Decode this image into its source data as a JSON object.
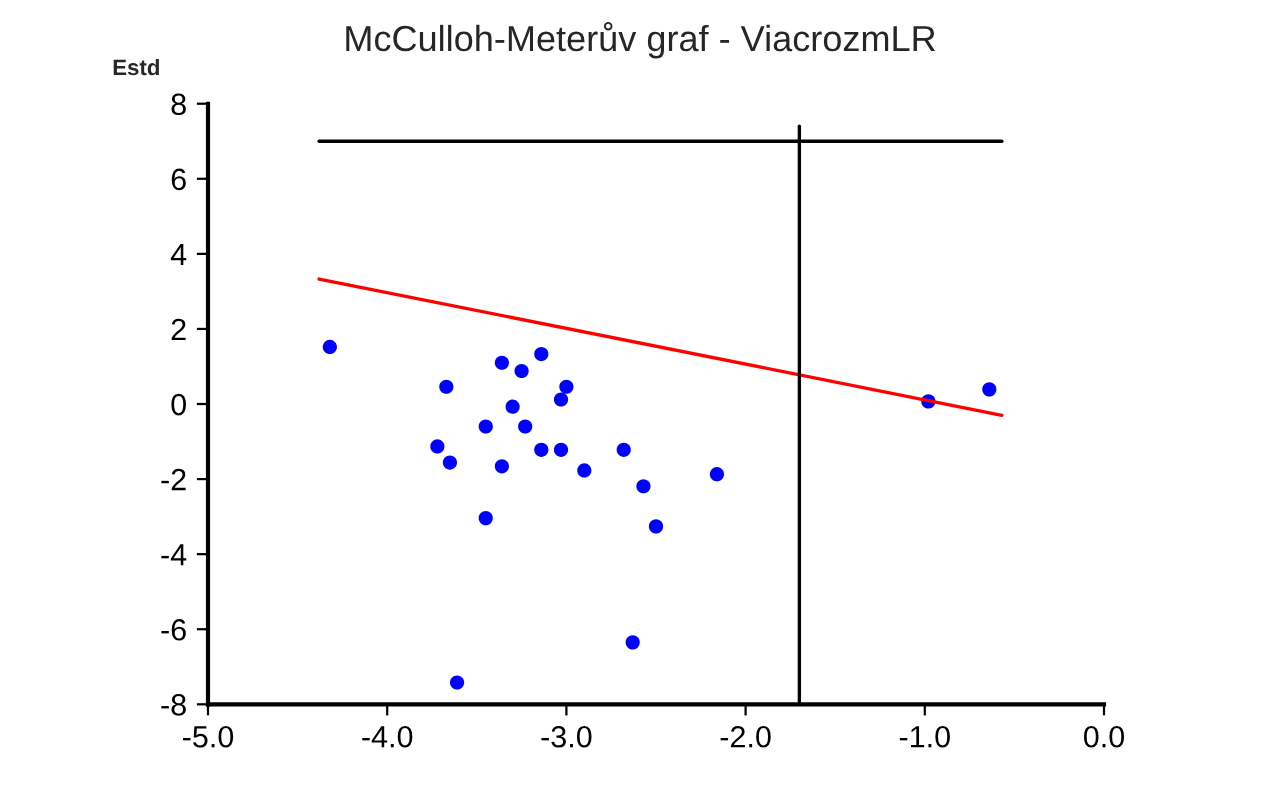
{
  "chart_data": {
    "type": "scatter",
    "title": "McCulloh-Meterův graf - ViacrozmLR",
    "ylabel": "Estd",
    "xlim": [
      -5,
      0
    ],
    "ylim": [
      -8,
      8
    ],
    "xticks": [
      {
        "value": -5,
        "label": "-5.0"
      },
      {
        "value": -4,
        "label": "-4.0"
      },
      {
        "value": -3,
        "label": "-3.0"
      },
      {
        "value": -2,
        "label": "-2.0"
      },
      {
        "value": -1,
        "label": "-1.0"
      },
      {
        "value": 0,
        "label": "0.0"
      }
    ],
    "yticks": [
      -8,
      -6,
      -4,
      -2,
      0,
      2,
      4,
      6,
      8
    ],
    "grid": false,
    "legend": false,
    "marker": "circle",
    "series": [
      {
        "color": "#0000ff",
        "x": [
          -4.32,
          -3.67,
          -3.36,
          -3.25,
          -3.14,
          -3.0,
          -3.03,
          -3.3,
          -3.45,
          -3.23,
          -3.72,
          -3.65,
          -3.36,
          -3.14,
          -3.03,
          -2.9,
          -2.68,
          -2.57,
          -2.5,
          -3.45,
          -2.63,
          -3.61,
          -2.16,
          -0.98,
          -0.64
        ],
        "values": [
          1.52,
          0.46,
          1.1,
          0.88,
          1.33,
          0.46,
          0.12,
          -0.07,
          -0.6,
          -0.6,
          -1.13,
          -1.56,
          -1.66,
          -1.22,
          -1.22,
          -1.77,
          -1.22,
          -2.19,
          -3.26,
          -3.04,
          -6.35,
          -7.42,
          -1.87,
          0.07,
          0.39
        ]
      },
      {
        "type": "line",
        "marker": "none",
        "color": "#ff0000",
        "x": [
          -4.38,
          -0.57
        ],
        "values": [
          3.33,
          -0.3
        ]
      },
      {
        "type": "line",
        "marker": "none",
        "color": "#000000",
        "x": [
          -4.38,
          -0.57
        ],
        "values": [
          7.0,
          7.0
        ]
      },
      {
        "type": "line",
        "marker": "none",
        "color": "#000000",
        "x": [
          -1.7,
          -1.7
        ],
        "values": [
          -8.0,
          7.4
        ]
      }
    ]
  }
}
